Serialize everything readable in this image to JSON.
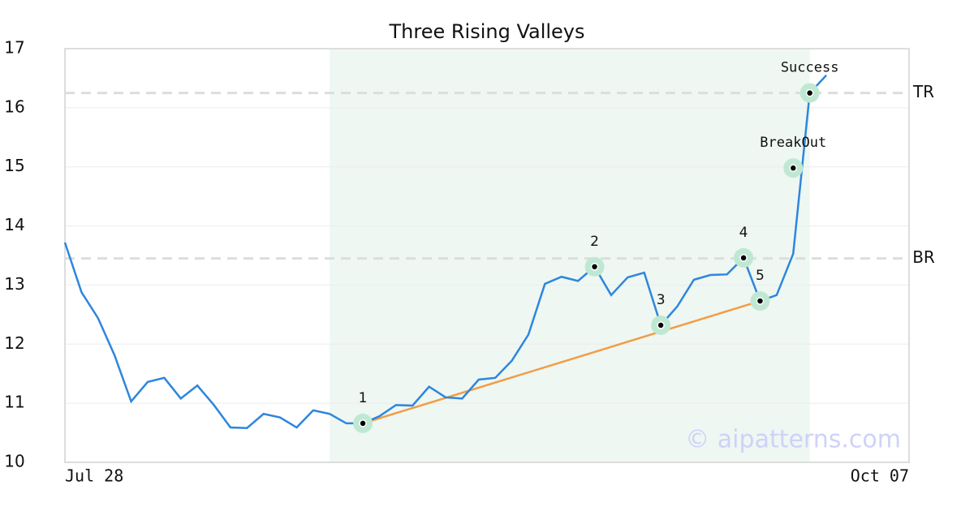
{
  "chart_data": {
    "type": "line",
    "title": "Three Rising Valleys",
    "x": [
      0,
      1,
      2,
      3,
      4,
      5,
      6,
      7,
      8,
      9,
      10,
      11,
      12,
      13,
      14,
      15,
      16,
      17,
      18,
      19,
      20,
      21,
      22,
      23,
      24,
      25,
      26,
      27,
      28,
      29,
      30,
      31,
      32,
      33,
      34,
      35,
      36,
      37,
      38,
      39,
      40,
      41,
      42,
      43,
      44,
      45,
      46
    ],
    "series": [
      {
        "name": "Price",
        "color": "#2e86de",
        "values": [
          13.72,
          12.88,
          12.44,
          11.81,
          11.03,
          11.36,
          11.43,
          11.08,
          11.3,
          10.97,
          10.59,
          10.58,
          10.82,
          10.76,
          10.59,
          10.88,
          10.82,
          10.66,
          10.66,
          10.78,
          10.97,
          10.96,
          11.28,
          11.1,
          11.08,
          11.4,
          11.43,
          11.72,
          12.16,
          13.02,
          13.14,
          13.07,
          13.31,
          12.83,
          13.13,
          13.21,
          12.32,
          12.64,
          13.09,
          13.17,
          13.18,
          13.46,
          12.73,
          12.83,
          13.53,
          16.25,
          16.55
        ]
      }
    ],
    "xlim": [
      0,
      51
    ],
    "xticks": [
      {
        "value": 0,
        "label": "Jul 28"
      },
      {
        "value": 51,
        "label": "Oct 07"
      }
    ],
    "ylim": [
      10,
      17
    ],
    "yticks": [
      10,
      11,
      12,
      13,
      14,
      15,
      16,
      17
    ],
    "grid": true,
    "shaded_region": [
      16,
      45
    ],
    "levels": [
      {
        "label": "TR",
        "value": 16.25
      },
      {
        "label": "BR",
        "value": 13.45
      }
    ],
    "trend_line": {
      "color": "#f39c45",
      "x": [
        18,
        42
      ],
      "values": [
        10.66,
        12.73
      ]
    },
    "annotations": [
      {
        "label": "1",
        "x": 18,
        "value": 10.66
      },
      {
        "label": "2",
        "x": 32,
        "value": 13.31
      },
      {
        "label": "3",
        "x": 36,
        "value": 12.32
      },
      {
        "label": "4",
        "x": 41,
        "value": 13.46
      },
      {
        "label": "5",
        "x": 42,
        "value": 12.73
      },
      {
        "label": "BreakOut",
        "x": 44,
        "value": 14.98
      },
      {
        "label": "Success",
        "x": 45,
        "value": 16.25
      }
    ],
    "watermark": "© aipatterns.com"
  }
}
